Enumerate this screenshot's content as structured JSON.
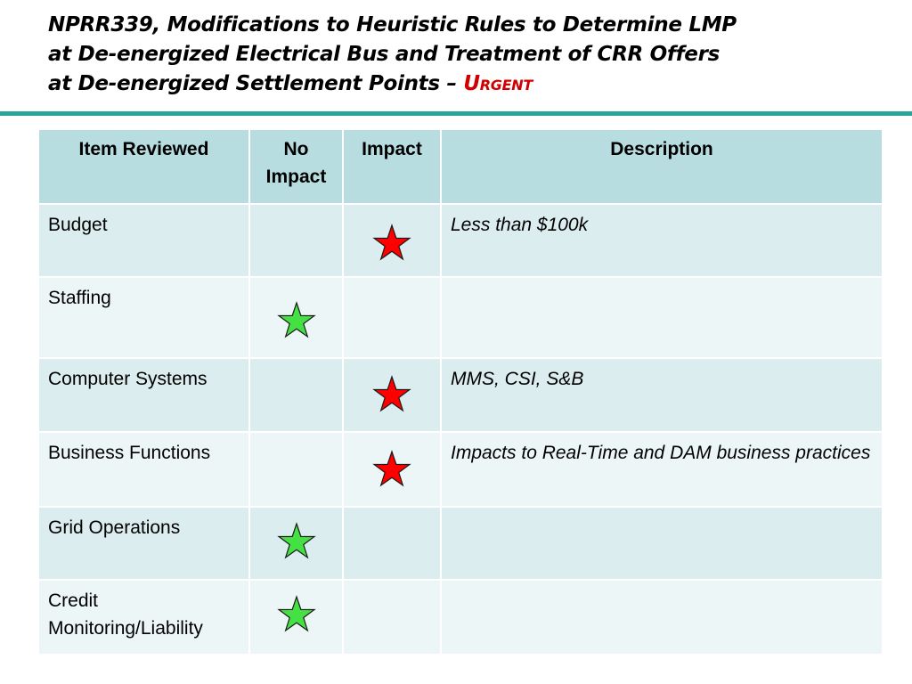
{
  "title": {
    "line1": "NPRR339, Modifications to Heuristic Rules to Determine LMP",
    "line2": "at De-energized Electrical Bus and Treatment of CRR Offers",
    "line3": "at De-energized Settlement Points – ",
    "urgent": "Urgent"
  },
  "table": {
    "headers": {
      "item": "Item Reviewed",
      "no_impact_1": "No",
      "no_impact_2": "Impact",
      "impact": "Impact",
      "description": "Description"
    },
    "rows": [
      {
        "item": "Budget",
        "marker": "impact",
        "marker_icon": "red-star-icon",
        "description": "Less than $100k"
      },
      {
        "item": "Staffing",
        "marker": "no-impact",
        "marker_icon": "green-star-icon",
        "description": ""
      },
      {
        "item": "Computer Systems",
        "marker": "impact",
        "marker_icon": "red-star-icon",
        "description": "MMS, CSI, S&B"
      },
      {
        "item": "Business Functions",
        "marker": "impact",
        "marker_icon": "red-star-icon",
        "description": " Impacts to Real-Time and DAM business practices"
      },
      {
        "item": "Grid Operations",
        "marker": "no-impact",
        "marker_icon": "green-star-icon",
        "description": ""
      },
      {
        "item": "Credit Monitoring/Liability",
        "marker": "no-impact",
        "marker_icon": "green-star-icon",
        "description": ""
      }
    ]
  },
  "colors": {
    "title_accent": "#d00000",
    "rule": "#2aa39a",
    "header_bg": "#b8dde0",
    "row_bg_a": "#dcedef",
    "row_bg_b": "#edf6f7",
    "impact_star": "#ff0000",
    "no_impact_star": "#44e044"
  }
}
